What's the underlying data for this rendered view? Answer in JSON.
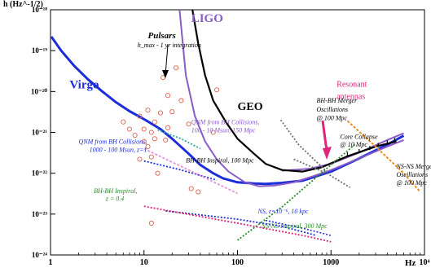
{
  "chart_data": {
    "type": "line",
    "title": "",
    "xlabel": "Hz",
    "ylabel": "h (Hz^-1/2)",
    "x_scale": "log",
    "y_scale": "log",
    "xlim": [
      1,
      10000
    ],
    "ylim": [
      1e-24,
      1e-18
    ],
    "grid": false,
    "legend": "none",
    "x_ticks": [
      {
        "value": 1,
        "label": "1"
      },
      {
        "value": 10,
        "label": "10"
      },
      {
        "value": 100,
        "label": "100"
      },
      {
        "value": 1000,
        "label": "1000"
      },
      {
        "value": 10000,
        "label": "10⁴"
      }
    ],
    "y_ticks": [
      {
        "value": 1e-18,
        "label": "10⁻¹⁸"
      },
      {
        "value": 1e-19,
        "label": "10⁻¹⁹"
      },
      {
        "value": 1e-20,
        "label": "10⁻²⁰"
      },
      {
        "value": 1e-21,
        "label": "10⁻²¹"
      },
      {
        "value": 1e-22,
        "label": "10⁻²²"
      },
      {
        "value": 1e-23,
        "label": "10⁻²³"
      },
      {
        "value": 1e-24,
        "label": "10⁻²⁴"
      }
    ],
    "series": [
      {
        "key": "virgo",
        "color": "#1c2ed8",
        "width": 3,
        "dash": "",
        "points": [
          [
            1.02,
            2.2e-19
          ],
          [
            1.3,
            1e-19
          ],
          [
            1.8,
            4.2e-20
          ],
          [
            2.5,
            2e-20
          ],
          [
            3.5,
            1.05e-20
          ],
          [
            5,
            5.5e-21
          ],
          [
            7,
            3.3e-21
          ],
          [
            10,
            2.1e-21
          ],
          [
            15,
            1.2e-21
          ],
          [
            20,
            7e-22
          ],
          [
            30,
            3e-22
          ],
          [
            40,
            1.6e-22
          ],
          [
            55,
            1e-22
          ],
          [
            70,
            7.5e-23
          ],
          [
            100,
            6e-23
          ],
          [
            150,
            5.6e-23
          ],
          [
            200,
            5.5e-23
          ],
          [
            300,
            5.8e-23
          ],
          [
            500,
            6.6e-23
          ],
          [
            1000,
            1.1e-22
          ],
          [
            2000,
            2.3e-22
          ],
          [
            4000,
            5e-22
          ],
          [
            6000,
            8.3e-22
          ]
        ]
      },
      {
        "key": "ligo",
        "color": "#8a5cc6",
        "width": 2,
        "dash": "",
        "points": [
          [
            24,
            1e-18
          ],
          [
            28,
            2.5e-20
          ],
          [
            35,
            2.5e-21
          ],
          [
            45,
            6e-22
          ],
          [
            60,
            2.2e-22
          ],
          [
            80,
            1.1e-22
          ],
          [
            120,
            6e-23
          ],
          [
            170,
            4.8e-23
          ],
          [
            250,
            5e-23
          ],
          [
            400,
            6e-23
          ],
          [
            600,
            8e-23
          ],
          [
            1000,
            1.2e-22
          ],
          [
            2000,
            2.3e-22
          ],
          [
            4000,
            4.5e-22
          ],
          [
            6000,
            6.5e-22
          ]
        ]
      },
      {
        "key": "ligo-advanced",
        "color": "#8a5cc6",
        "width": 2,
        "dash": "",
        "points": [
          [
            300,
            1.15e-22
          ],
          [
            600,
            1.3e-22
          ],
          [
            1000,
            1.7e-22
          ],
          [
            2000,
            3.2e-22
          ],
          [
            4000,
            6.5e-22
          ],
          [
            6000,
            9.5e-22
          ]
        ]
      },
      {
        "key": "geo",
        "color": "#000000",
        "width": 2.2,
        "dash": "",
        "points": [
          [
            33,
            1e-18
          ],
          [
            38,
            1.5e-19
          ],
          [
            45,
            2.5e-20
          ],
          [
            55,
            6e-21
          ],
          [
            75,
            1.8e-21
          ],
          [
            100,
            7e-22
          ],
          [
            150,
            3e-22
          ],
          [
            200,
            1.7e-22
          ],
          [
            300,
            1.2e-22
          ],
          [
            500,
            1.1e-22
          ],
          [
            800,
            1.4e-22
          ],
          [
            1500,
            2.6e-22
          ],
          [
            3000,
            4.5e-22
          ],
          [
            5000,
            6e-22
          ]
        ]
      },
      {
        "key": "qnm-1000-100",
        "color": "#1c2ed8",
        "width": 1.8,
        "dash": "2,2",
        "points": [
          [
            10,
            2e-22
          ],
          [
            25,
            1.2e-22
          ],
          [
            60,
            6.8e-23
          ]
        ]
      },
      {
        "key": "qnm-100-10",
        "color": "#2aa8a0",
        "width": 1.8,
        "dash": "2,2",
        "points": [
          [
            14,
            1.15e-21
          ],
          [
            25,
            7e-22
          ],
          [
            40,
            4e-22
          ]
        ]
      },
      {
        "key": "bhbh-inspiral-100",
        "color": "#707070",
        "width": 1.8,
        "dash": "2,2",
        "points": [
          [
            290,
            2e-21
          ],
          [
            450,
            5e-22
          ],
          [
            900,
            1.1e-22
          ]
        ]
      },
      {
        "key": "bhbh-inspiral-z04",
        "color": "#e690d8",
        "width": 1.8,
        "dash": "3,2",
        "points": [
          [
            10,
            4e-22
          ],
          [
            30,
            1.2e-22
          ],
          [
            100,
            3.2e-23
          ]
        ]
      },
      {
        "key": "ns-spin",
        "color": "#1c2ed8",
        "width": 1.8,
        "dash": "2,2",
        "points": [
          [
            17,
            1.2e-23
          ],
          [
            100,
            7.5e-24
          ],
          [
            300,
            5e-24
          ],
          [
            700,
            3e-24
          ]
        ]
      },
      {
        "key": "nsns-inspiral-300",
        "color": "#e0247a",
        "width": 1.8,
        "dash": "2,2",
        "points": [
          [
            10,
            1.55e-23
          ],
          [
            100,
            6e-24
          ],
          [
            500,
            3e-24
          ],
          [
            1000,
            2.1e-24
          ]
        ]
      },
      {
        "key": "bhbh-merger-100",
        "color": "#707070",
        "width": 1.8,
        "dash": "2,2",
        "points": [
          [
            400,
            2.2e-22
          ],
          [
            900,
            1e-22
          ],
          [
            1600,
            4.5e-23
          ]
        ]
      },
      {
        "key": "core-collapse",
        "color": "#2a8a2a",
        "width": 1.8,
        "dash": "2,2",
        "points": [
          [
            100,
            2.3e-24
          ],
          [
            300,
            1.5e-23
          ],
          [
            700,
            8e-23
          ],
          [
            1800,
            5e-22
          ]
        ]
      },
      {
        "key": "nsns-merger-100",
        "color": "#f08a18",
        "width": 2,
        "dash": "3,2",
        "points": [
          [
            1500,
            1.9e-21
          ],
          [
            3000,
            4.5e-22
          ],
          [
            6000,
            1e-22
          ],
          [
            9000,
            3.5e-23
          ]
        ]
      },
      {
        "key": "ns-curve-tail",
        "color": "#1c2ed8",
        "width": 1.6,
        "dash": "2,2",
        "points": [
          [
            200,
            7e-24
          ],
          [
            500,
            4.5e-24
          ],
          [
            1000,
            3e-24
          ]
        ]
      }
    ],
    "scatter": {
      "name": "Pulsars",
      "color": "#e0604a",
      "points": [
        [
          6,
          1.8e-21
        ],
        [
          7,
          1.2e-21
        ],
        [
          8,
          8.5e-22
        ],
        [
          9,
          2.5e-21
        ],
        [
          9,
          2.2e-22
        ],
        [
          10,
          6e-22
        ],
        [
          10,
          1.2e-21
        ],
        [
          11,
          4.5e-22
        ],
        [
          11,
          3.5e-21
        ],
        [
          12,
          1e-21
        ],
        [
          12,
          2.5e-22
        ],
        [
          12,
          6e-24
        ],
        [
          13,
          1.8e-21
        ],
        [
          13,
          7e-22
        ],
        [
          14,
          1e-22
        ],
        [
          15,
          3e-21
        ],
        [
          16,
          2.2e-20
        ],
        [
          17,
          6.5e-22
        ],
        [
          18,
          8e-21
        ],
        [
          18,
          1.3e-21
        ],
        [
          20,
          3.2e-21
        ],
        [
          22,
          3.8e-20
        ],
        [
          25,
          6e-21
        ],
        [
          30,
          1.6e-21
        ],
        [
          32,
          4.2e-23
        ],
        [
          38,
          3.5e-23
        ],
        [
          55,
          1e-21
        ],
        [
          60,
          1.1e-20
        ]
      ]
    },
    "annotations": [
      {
        "key": "virgo",
        "text": "Virgo",
        "x": 1.6,
        "y": 1.2e-20,
        "color": "#1c2ed8",
        "size": 15,
        "bold": true,
        "italic": false
      },
      {
        "key": "ligo",
        "text": "LIGO",
        "x": 32,
        "y": 5e-19,
        "color": "#8a5cc6",
        "size": 15,
        "bold": true,
        "italic": false
      },
      {
        "key": "geo",
        "text": "GEO",
        "x": 100,
        "y": 3.5e-21,
        "color": "#000000",
        "size": 14,
        "bold": true,
        "italic": false
      },
      {
        "key": "pulsars",
        "text": "Pulsars",
        "x": 11,
        "y": 2e-19,
        "color": "#000000",
        "size": 11,
        "bold": true,
        "italic": true
      },
      {
        "key": "pulsars-sub",
        "text": "h_max - 1 yr integration",
        "x": 8.5,
        "y": 1.2e-19,
        "color": "#000000",
        "size": 8,
        "bold": false,
        "italic": true
      },
      {
        "key": "resonant1",
        "text": "Resonant",
        "x": 1150,
        "y": 1.3e-20,
        "color": "#e0247a",
        "size": 10,
        "bold": false,
        "italic": false
      },
      {
        "key": "resonant2",
        "text": "antennas",
        "x": 1150,
        "y": 6.5e-21,
        "color": "#e0247a",
        "size": 10,
        "bold": false,
        "italic": false
      },
      {
        "key": "bhbhm1",
        "text": "BH-BH Merger",
        "x": 700,
        "y": 5.3e-21,
        "color": "#000000",
        "size": 8,
        "bold": false,
        "italic": true
      },
      {
        "key": "bhbhm2",
        "text": "Oscillations",
        "x": 700,
        "y": 3.2e-21,
        "color": "#000000",
        "size": 8,
        "bold": false,
        "italic": true
      },
      {
        "key": "bhbhm3",
        "text": "@ 100 Mpc",
        "x": 700,
        "y": 2e-21,
        "color": "#000000",
        "size": 8,
        "bold": false,
        "italic": true
      },
      {
        "key": "cc1",
        "text": "Core Collapse",
        "x": 1250,
        "y": 7e-22,
        "color": "#000000",
        "size": 8,
        "bold": false,
        "italic": true
      },
      {
        "key": "cc2",
        "text": "@ 10 Mpc",
        "x": 1250,
        "y": 4.5e-22,
        "color": "#000000",
        "size": 8,
        "bold": false,
        "italic": true
      },
      {
        "key": "nsnsm1",
        "text": "NS-NS Merger",
        "x": 5000,
        "y": 1.3e-22,
        "color": "#000000",
        "size": 8,
        "bold": false,
        "italic": true
      },
      {
        "key": "nsnsm2",
        "text": "Oscillations",
        "x": 5000,
        "y": 8.2e-23,
        "color": "#000000",
        "size": 8,
        "bold": false,
        "italic": true
      },
      {
        "key": "nsnsm3",
        "text": "@ 100 Mpc",
        "x": 5000,
        "y": 5.2e-23,
        "color": "#000000",
        "size": 8,
        "bold": false,
        "italic": true
      },
      {
        "key": "qnm1a",
        "text": "QNM from BH Collisions,",
        "x": 2.0,
        "y": 5.2e-22,
        "color": "#1c2ed8",
        "size": 8,
        "bold": false,
        "italic": true
      },
      {
        "key": "qnm1b",
        "text": "1000 - 100 Msun, z=1",
        "x": 2.6,
        "y": 3.3e-22,
        "color": "#1c2ed8",
        "size": 8,
        "bold": false,
        "italic": true
      },
      {
        "key": "qnm2a",
        "text": "QNM from BH Collisions,",
        "x": 32,
        "y": 1.6e-21,
        "color": "#8a5cc6",
        "size": 8,
        "bold": false,
        "italic": true
      },
      {
        "key": "qnm2b",
        "text": "100 - 10 Msun, 150 Mpc",
        "x": 32,
        "y": 1e-21,
        "color": "#8a5cc6",
        "size": 8,
        "bold": false,
        "italic": true
      },
      {
        "key": "bhbhi100",
        "text": "BH-BH Inspiral, 100 Mpc",
        "x": 28,
        "y": 1.85e-22,
        "color": "#000000",
        "size": 8,
        "bold": false,
        "italic": true
      },
      {
        "key": "bhbhiz1",
        "text": "BH-BH Inspiral,",
        "x": 2.9,
        "y": 3.3e-23,
        "color": "#2a8a2a",
        "size": 8,
        "bold": false,
        "italic": true
      },
      {
        "key": "bhbhiz2",
        "text": "z = 0.4",
        "x": 3.9,
        "y": 2.1e-23,
        "color": "#2a8a2a",
        "size": 8,
        "bold": false,
        "italic": true
      },
      {
        "key": "ns",
        "text": "NS, ε=10⁻⁶, 10 kpc",
        "x": 165,
        "y": 1.05e-23,
        "color": "#1c2ed8",
        "size": 8,
        "bold": false,
        "italic": true
      },
      {
        "key": "nsnsi",
        "text": "NS-NS Inspiral, 300 Mpc",
        "x": 180,
        "y": 4.6e-24,
        "color": "#2a8a2a",
        "size": 8,
        "bold": false,
        "italic": true
      }
    ]
  }
}
